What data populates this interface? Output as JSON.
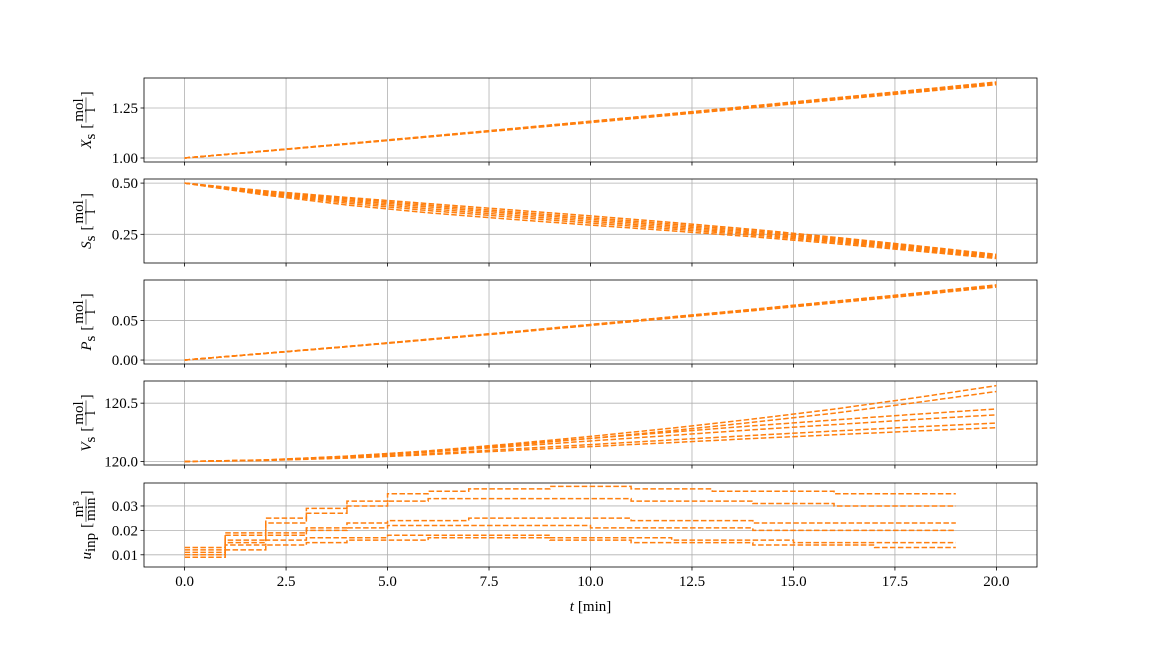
{
  "chart_data": [
    {
      "type": "line",
      "ylabel": {
        "symbol": "X",
        "subscript": "s",
        "unit": {
          "open": "[",
          "numerator": "mol",
          "denominator": "l",
          "close": "]"
        }
      },
      "x": [
        0,
        2,
        4,
        6,
        8,
        10,
        12,
        14,
        16,
        18,
        20
      ],
      "xlim": [
        -1,
        21
      ],
      "xticks": [
        0,
        2.5,
        5,
        7.5,
        10,
        12.5,
        15,
        17.5,
        20
      ],
      "ylim": [
        0.98,
        1.4
      ],
      "yticks": [
        {
          "value": 1.0,
          "label": "1.00"
        },
        {
          "value": 1.25,
          "label": "1.25"
        }
      ],
      "grid": true,
      "series": [
        {
          "color": "#ff7f0e",
          "values": [
            1.0,
            1.034,
            1.069,
            1.105,
            1.141,
            1.177,
            1.214,
            1.251,
            1.29,
            1.328,
            1.367
          ]
        },
        {
          "color": "#ff7f0e",
          "values": [
            1.0,
            1.035,
            1.07,
            1.106,
            1.142,
            1.179,
            1.217,
            1.254,
            1.293,
            1.331,
            1.371
          ]
        },
        {
          "color": "#ff7f0e",
          "values": [
            1.0,
            1.035,
            1.071,
            1.107,
            1.144,
            1.181,
            1.219,
            1.257,
            1.296,
            1.335,
            1.375
          ]
        },
        {
          "color": "#ff7f0e",
          "values": [
            1.0,
            1.035,
            1.072,
            1.108,
            1.145,
            1.183,
            1.221,
            1.259,
            1.298,
            1.338,
            1.378
          ]
        },
        {
          "color": "#ff7f0e",
          "values": [
            1.0,
            1.036,
            1.072,
            1.109,
            1.146,
            1.184,
            1.222,
            1.261,
            1.3,
            1.34,
            1.38
          ]
        },
        {
          "color": "#ff7f0e",
          "values": [
            1.0,
            1.035,
            1.071,
            1.106,
            1.143,
            1.18,
            1.218,
            1.256,
            1.294,
            1.333,
            1.373
          ]
        }
      ]
    },
    {
      "type": "line",
      "ylabel": {
        "symbol": "S",
        "subscript": "s",
        "unit": {
          "open": "[",
          "numerator": "mol",
          "denominator": "l",
          "close": "]"
        }
      },
      "x": [
        0,
        2,
        4,
        6,
        8,
        10,
        12,
        14,
        16,
        18,
        20
      ],
      "xlim": [
        -1,
        21
      ],
      "xticks": [
        0,
        2.5,
        5,
        7.5,
        10,
        12.5,
        15,
        17.5,
        20
      ],
      "ylim": [
        0.11,
        0.52
      ],
      "yticks": [
        {
          "value": 0.25,
          "label": "0.25"
        },
        {
          "value": 0.5,
          "label": "0.50"
        }
      ],
      "grid": true,
      "series": [
        {
          "color": "#ff7f0e",
          "values": [
            0.5,
            0.462,
            0.43,
            0.4,
            0.37,
            0.34,
            0.308,
            0.274,
            0.236,
            0.195,
            0.152
          ]
        },
        {
          "color": "#ff7f0e",
          "values": [
            0.5,
            0.458,
            0.424,
            0.392,
            0.361,
            0.331,
            0.3,
            0.267,
            0.23,
            0.19,
            0.148
          ]
        },
        {
          "color": "#ff7f0e",
          "values": [
            0.5,
            0.454,
            0.417,
            0.384,
            0.353,
            0.323,
            0.292,
            0.26,
            0.224,
            0.185,
            0.144
          ]
        },
        {
          "color": "#ff7f0e",
          "values": [
            0.5,
            0.45,
            0.41,
            0.375,
            0.344,
            0.314,
            0.284,
            0.253,
            0.218,
            0.18,
            0.14
          ]
        },
        {
          "color": "#ff7f0e",
          "values": [
            0.5,
            0.446,
            0.402,
            0.366,
            0.335,
            0.305,
            0.276,
            0.246,
            0.212,
            0.175,
            0.136
          ]
        },
        {
          "color": "#ff7f0e",
          "values": [
            0.5,
            0.441,
            0.393,
            0.355,
            0.324,
            0.295,
            0.267,
            0.238,
            0.205,
            0.169,
            0.132
          ]
        }
      ]
    },
    {
      "type": "line",
      "ylabel": {
        "symbol": "P",
        "subscript": "s",
        "unit": {
          "open": "[",
          "numerator": "mol",
          "denominator": "l",
          "close": "]"
        }
      },
      "x": [
        0,
        2,
        4,
        6,
        8,
        10,
        12,
        14,
        16,
        18,
        20
      ],
      "xlim": [
        -1,
        21
      ],
      "xticks": [
        0,
        2.5,
        5,
        7.5,
        10,
        12.5,
        15,
        17.5,
        20
      ],
      "ylim": [
        -0.005,
        0.101
      ],
      "yticks": [
        {
          "value": 0,
          "label": "0.00"
        },
        {
          "value": 0.05,
          "label": "0.05"
        }
      ],
      "grid": true,
      "series": [
        {
          "color": "#ff7f0e",
          "values": [
            0,
            0.0083,
            0.0167,
            0.0255,
            0.0343,
            0.0436,
            0.0529,
            0.0622,
            0.072,
            0.0818,
            0.0921
          ]
        },
        {
          "color": "#ff7f0e",
          "values": [
            0,
            0.0084,
            0.0168,
            0.0257,
            0.0347,
            0.0441,
            0.0535,
            0.0629,
            0.0728,
            0.0827,
            0.0931
          ]
        },
        {
          "color": "#ff7f0e",
          "values": [
            0,
            0.0085,
            0.017,
            0.026,
            0.035,
            0.0445,
            0.054,
            0.0635,
            0.0735,
            0.0835,
            0.094
          ]
        },
        {
          "color": "#ff7f0e",
          "values": [
            0,
            0.0085,
            0.0171,
            0.0261,
            0.0352,
            0.0447,
            0.0543,
            0.0638,
            0.0739,
            0.0839,
            0.0945
          ]
        },
        {
          "color": "#ff7f0e",
          "values": [
            0,
            0.0086,
            0.0172,
            0.0263,
            0.0354,
            0.0449,
            0.0545,
            0.0641,
            0.0742,
            0.0843,
            0.0949
          ]
        },
        {
          "color": "#ff7f0e",
          "values": [
            0,
            0.0085,
            0.0169,
            0.0259,
            0.0348,
            0.0443,
            0.0537,
            0.0632,
            0.0731,
            0.0831,
            0.0935
          ]
        }
      ]
    },
    {
      "type": "line",
      "ylabel": {
        "symbol": "V",
        "subscript": "s",
        "unit": {
          "open": "[",
          "numerator": "mol",
          "denominator": "l",
          "close": "]"
        }
      },
      "x": [
        0,
        2,
        4,
        6,
        8,
        10,
        12,
        14,
        16,
        18,
        20
      ],
      "xlim": [
        -1,
        21
      ],
      "xticks": [
        0,
        2.5,
        5,
        7.5,
        10,
        12.5,
        15,
        17.5,
        20
      ],
      "ylim": [
        119.97,
        120.69
      ],
      "yticks": [
        {
          "value": 120.0,
          "label": "120.0"
        },
        {
          "value": 120.5,
          "label": "120.5"
        }
      ],
      "grid": true,
      "series": [
        {
          "color": "#ff7f0e",
          "values": [
            120.0,
            120.013,
            120.046,
            120.091,
            120.15,
            120.215,
            120.286,
            120.364,
            120.449,
            120.546,
            120.65
          ]
        },
        {
          "color": "#ff7f0e",
          "values": [
            120.0,
            120.012,
            120.042,
            120.084,
            120.138,
            120.198,
            120.264,
            120.336,
            120.414,
            120.504,
            120.6
          ]
        },
        {
          "color": "#ff7f0e",
          "values": [
            120.0,
            120.014,
            120.045,
            120.09,
            120.144,
            120.198,
            120.252,
            120.306,
            120.356,
            120.405,
            120.45
          ]
        },
        {
          "color": "#ff7f0e",
          "values": [
            120.0,
            120.012,
            120.04,
            120.08,
            120.128,
            120.176,
            120.224,
            120.272,
            120.316,
            120.36,
            120.4
          ]
        },
        {
          "color": "#ff7f0e",
          "values": [
            120.0,
            120.01,
            120.033,
            120.066,
            120.106,
            120.145,
            120.185,
            120.224,
            120.261,
            120.297,
            120.33
          ]
        },
        {
          "color": "#ff7f0e",
          "values": [
            120.0,
            120.009,
            120.029,
            120.058,
            120.093,
            120.128,
            120.162,
            120.197,
            120.229,
            120.261,
            120.29
          ]
        }
      ]
    },
    {
      "type": "line",
      "drawstyle": "steps-post",
      "ylabel": {
        "symbol": "u",
        "subscript": "inp",
        "unit": {
          "open": "[",
          "numerator": "m³",
          "denominator": "min",
          "close": "]"
        }
      },
      "xlabel": {
        "symbol": "t",
        "unit": "[min]"
      },
      "x": [
        0,
        1,
        2,
        3,
        4,
        5,
        6,
        7,
        8,
        9,
        10,
        11,
        12,
        13,
        14,
        15,
        16,
        17,
        18,
        19
      ],
      "xlim": [
        -1,
        21
      ],
      "xticks": [
        {
          "value": 0,
          "label": "0.0"
        },
        {
          "value": 2.5,
          "label": "2.5"
        },
        {
          "value": 5,
          "label": "5.0"
        },
        {
          "value": 7.5,
          "label": "7.5"
        },
        {
          "value": 10,
          "label": "10.0"
        },
        {
          "value": 12.5,
          "label": "12.5"
        },
        {
          "value": 15,
          "label": "15.0"
        },
        {
          "value": 17.5,
          "label": "17.5"
        },
        {
          "value": 20,
          "label": "20.0"
        }
      ],
      "ylim": [
        0.005,
        0.0394
      ],
      "yticks": [
        0.01,
        0.02,
        0.03
      ],
      "grid": true,
      "series": [
        {
          "color": "#ff7f0e",
          "values": [
            0.013,
            0.019,
            0.025,
            0.029,
            0.032,
            0.035,
            0.036,
            0.037,
            0.037,
            0.038,
            0.038,
            0.037,
            0.037,
            0.036,
            0.036,
            0.036,
            0.035,
            0.035,
            0.035,
            0.035
          ]
        },
        {
          "color": "#ff7f0e",
          "values": [
            0.012,
            0.018,
            0.023,
            0.027,
            0.03,
            0.032,
            0.033,
            0.033,
            0.033,
            0.033,
            0.033,
            0.032,
            0.032,
            0.032,
            0.031,
            0.031,
            0.03,
            0.03,
            0.03,
            0.03
          ]
        },
        {
          "color": "#ff7f0e",
          "values": [
            0.011,
            0.016,
            0.019,
            0.021,
            0.023,
            0.024,
            0.024,
            0.025,
            0.025,
            0.025,
            0.025,
            0.024,
            0.024,
            0.024,
            0.023,
            0.023,
            0.023,
            0.023,
            0.023,
            0.023
          ]
        },
        {
          "color": "#ff7f0e",
          "values": [
            0.01,
            0.015,
            0.018,
            0.02,
            0.021,
            0.022,
            0.022,
            0.022,
            0.022,
            0.022,
            0.021,
            0.021,
            0.021,
            0.021,
            0.02,
            0.02,
            0.02,
            0.02,
            0.02,
            0.02
          ]
        },
        {
          "color": "#ff7f0e",
          "values": [
            0.01,
            0.014,
            0.016,
            0.017,
            0.017,
            0.018,
            0.018,
            0.018,
            0.018,
            0.017,
            0.017,
            0.017,
            0.016,
            0.016,
            0.016,
            0.015,
            0.015,
            0.015,
            0.015,
            0.015
          ]
        },
        {
          "color": "#ff7f0e",
          "values": [
            0.009,
            0.012,
            0.014,
            0.015,
            0.016,
            0.016,
            0.017,
            0.017,
            0.017,
            0.016,
            0.016,
            0.015,
            0.015,
            0.015,
            0.014,
            0.014,
            0.014,
            0.013,
            0.013,
            0.013
          ]
        }
      ]
    }
  ]
}
